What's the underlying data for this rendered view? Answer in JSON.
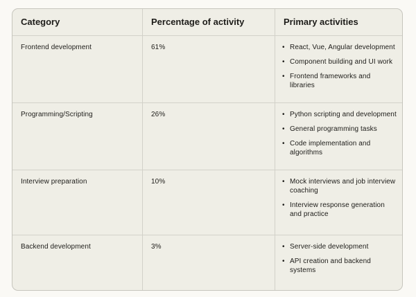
{
  "chart_data": {
    "type": "table",
    "title": "",
    "columns": [
      "Category",
      "Percentage of activity",
      "Primary activities"
    ],
    "rows": [
      {
        "category": "Frontend development",
        "percentage": "61%",
        "percentage_value": 61,
        "activities": [
          "React, Vue, Angular development",
          "Component building and UI work",
          "Frontend frameworks and libraries"
        ]
      },
      {
        "category": "Programming/Scripting",
        "percentage": "26%",
        "percentage_value": 26,
        "activities": [
          "Python scripting and development",
          "General programming tasks",
          "Code implementation and algorithms"
        ]
      },
      {
        "category": "Interview preparation",
        "percentage": "10%",
        "percentage_value": 10,
        "activities": [
          "Mock interviews and job interview coaching",
          "Interview response generation and practice"
        ]
      },
      {
        "category": "Backend development",
        "percentage": "3%",
        "percentage_value": 3,
        "activities": [
          "Server-side development",
          "API creation and backend systems"
        ]
      }
    ]
  },
  "colors": {
    "page_background": "#faf9f5",
    "table_background": "#efeee6",
    "divider": "#d2d1c9",
    "outer_border": "#c6c5bd",
    "text": "#1d1c19"
  }
}
